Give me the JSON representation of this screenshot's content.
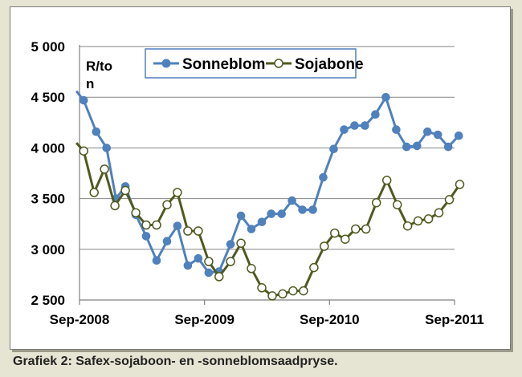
{
  "caption": "Grafiek 2: Safex-sojaboon- en -sonneblomsaadpryse.",
  "chart_data": {
    "type": "line",
    "title": "",
    "ylabel": "R/ton",
    "xlabel": "",
    "ylim": [
      2500,
      5000
    ],
    "yticks": [
      2500,
      3000,
      3500,
      4000,
      4500,
      5000
    ],
    "ytick_labels": [
      "2 500",
      "3 000",
      "3 500",
      "4 000",
      "4 500",
      "5 000"
    ],
    "xlim": [
      0,
      36
    ],
    "xticks": [
      0,
      12,
      24,
      36
    ],
    "xtick_labels": [
      "Sep-2008",
      "Sep-2009",
      "Sep-2010",
      "Sep-2011"
    ],
    "grid": "horizontal",
    "legend_position": "top-center",
    "series": [
      {
        "name": "Sonneblom",
        "color": "#4f81bd",
        "marker": "filled-circle",
        "line_start": [
          -0.3,
          4560
        ],
        "x": [
          0.4,
          1.6,
          2.6,
          3.5,
          4.4,
          5.4,
          6.4,
          7.4,
          8.4,
          9.4,
          10.4,
          11.4,
          12.4,
          13.4,
          14.5,
          15.5,
          16.5,
          17.5,
          18.4,
          19.4,
          20.4,
          21.4,
          22.4,
          23.4,
          24.4,
          25.4,
          26.4,
          27.4,
          28.4,
          29.4,
          30.4,
          31.4,
          32.4,
          33.4,
          34.4,
          35.4,
          36.4
        ],
        "values": [
          4470,
          4160,
          4000,
          3500,
          3620,
          3340,
          3130,
          2890,
          3080,
          3230,
          2840,
          2910,
          2770,
          2780,
          3050,
          3330,
          3200,
          3270,
          3350,
          3350,
          3480,
          3390,
          3390,
          3710,
          3990,
          4180,
          4220,
          4220,
          4330,
          4500,
          4180,
          4010,
          4020,
          4160,
          4130,
          4010,
          4120
        ]
      },
      {
        "name": "Sojabone",
        "color": "#4f5a1f",
        "marker": "hollow-circle",
        "line_start": [
          -0.3,
          4050
        ],
        "x": [
          0.4,
          1.4,
          2.4,
          3.4,
          4.4,
          5.4,
          6.4,
          7.4,
          8.4,
          9.4,
          10.4,
          11.4,
          12.4,
          13.4,
          14.5,
          15.5,
          16.5,
          17.5,
          18.5,
          19.5,
          20.5,
          21.5,
          22.5,
          23.5,
          24.5,
          25.5,
          26.5,
          27.5,
          28.5,
          29.5,
          30.5,
          31.5,
          32.5,
          33.5,
          34.5,
          35.5,
          36.5
        ],
        "values": [
          3970,
          3560,
          3790,
          3430,
          3580,
          3360,
          3240,
          3240,
          3440,
          3560,
          3180,
          3180,
          2880,
          2730,
          2880,
          3060,
          2810,
          2620,
          2540,
          2560,
          2590,
          2590,
          2820,
          3030,
          3160,
          3100,
          3200,
          3200,
          3460,
          3680,
          3440,
          3230,
          3280,
          3300,
          3360,
          3490,
          3640
        ]
      }
    ]
  }
}
